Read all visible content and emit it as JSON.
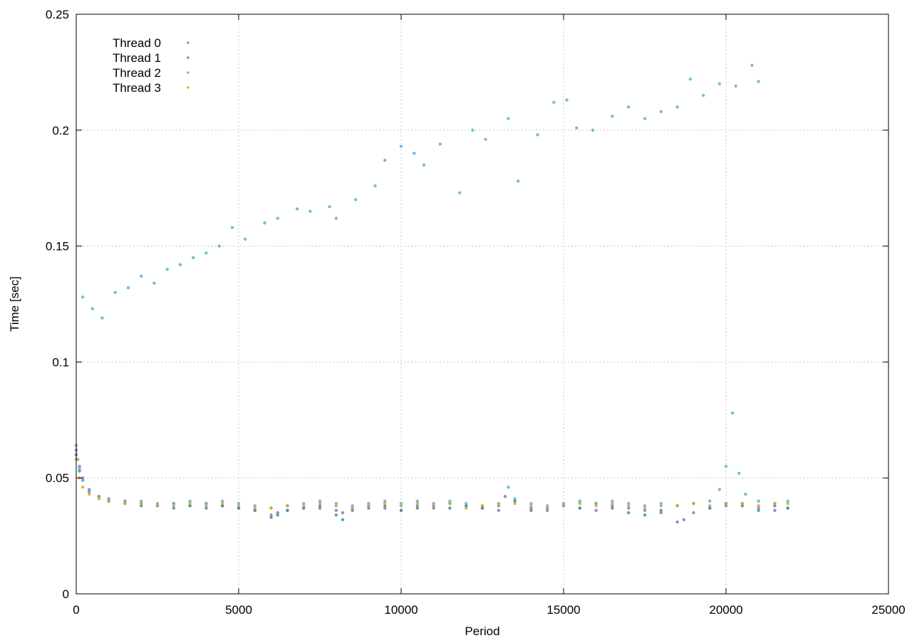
{
  "chart_data": {
    "type": "scatter",
    "title": "",
    "xlabel": "Period",
    "ylabel": "Time [sec]",
    "xlim": [
      0,
      25000
    ],
    "ylim": [
      0,
      0.25
    ],
    "x_ticks": [
      0,
      5000,
      10000,
      15000,
      20000,
      25000
    ],
    "x_tick_labels": [
      "0",
      "5000",
      "10000",
      "15000",
      "20000",
      "25000"
    ],
    "y_ticks": [
      0,
      0.05,
      0.1,
      0.15,
      0.2,
      0.25
    ],
    "y_tick_labels": [
      "0",
      "0.05",
      "0.1",
      "0.15",
      "0.2",
      "0.25"
    ],
    "grid": true,
    "legend_position": "top-left",
    "series": [
      {
        "name": "Thread 0",
        "color": "#9a6fc8",
        "x": [
          0,
          100,
          200,
          400,
          700,
          1000,
          1500,
          2000,
          2500,
          3000,
          3500,
          4000,
          4500,
          5000,
          5500,
          6000,
          6200,
          6500,
          7000,
          7500,
          8000,
          8200,
          8500,
          9000,
          9500,
          10000,
          10500,
          11000,
          11500,
          12000,
          12500,
          13000,
          13200,
          13500,
          14000,
          14500,
          15000,
          15500,
          16000,
          16500,
          17000,
          17500,
          18000,
          18500,
          18700,
          19000,
          19500,
          20000,
          20500,
          21000,
          21500,
          21900
        ],
        "y": [
          0.062,
          0.055,
          0.05,
          0.045,
          0.042,
          0.041,
          0.04,
          0.039,
          0.038,
          0.039,
          0.038,
          0.039,
          0.038,
          0.037,
          0.036,
          0.034,
          0.035,
          0.036,
          0.037,
          0.038,
          0.036,
          0.035,
          0.037,
          0.038,
          0.037,
          0.036,
          0.038,
          0.037,
          0.039,
          0.038,
          0.037,
          0.036,
          0.042,
          0.04,
          0.037,
          0.036,
          0.038,
          0.037,
          0.036,
          0.038,
          0.037,
          0.036,
          0.035,
          0.031,
          0.032,
          0.035,
          0.037,
          0.038,
          0.039,
          0.037,
          0.036,
          0.037
        ]
      },
      {
        "name": "Thread 1",
        "color": "#2a9d8f",
        "x": [
          0,
          100,
          200,
          400,
          700,
          1000,
          1500,
          2000,
          2500,
          3000,
          3500,
          4000,
          4500,
          5000,
          5500,
          6000,
          6200,
          6500,
          7000,
          7500,
          8000,
          8200,
          8500,
          9000,
          9500,
          10000,
          10500,
          11000,
          11500,
          12000,
          12500,
          13000,
          13500,
          14000,
          14500,
          15000,
          15500,
          16000,
          16500,
          17000,
          17500,
          18000,
          18500,
          19000,
          19500,
          20000,
          20500,
          21000,
          21500,
          21900
        ],
        "y": [
          0.06,
          0.053,
          0.049,
          0.044,
          0.042,
          0.04,
          0.039,
          0.038,
          0.038,
          0.037,
          0.038,
          0.037,
          0.038,
          0.037,
          0.036,
          0.033,
          0.034,
          0.036,
          0.037,
          0.037,
          0.034,
          0.032,
          0.036,
          0.037,
          0.038,
          0.036,
          0.037,
          0.038,
          0.037,
          0.038,
          0.037,
          0.038,
          0.04,
          0.036,
          0.037,
          0.038,
          0.037,
          0.039,
          0.037,
          0.035,
          0.034,
          0.036,
          0.038,
          0.039,
          0.037,
          0.039,
          0.038,
          0.036,
          0.038,
          0.037
        ]
      },
      {
        "name": "Thread 2",
        "color": "#5bb0d8",
        "x": [
          0,
          50,
          100,
          200,
          400,
          700,
          1000,
          1500,
          2000,
          2500,
          3000,
          3500,
          4000,
          4500,
          5000,
          5500,
          6000,
          6500,
          7000,
          7500,
          8000,
          8500,
          9000,
          9500,
          10000,
          10500,
          11000,
          11500,
          12000,
          12500,
          13000,
          13300,
          13500,
          14000,
          14500,
          15000,
          15500,
          16000,
          16500,
          17000,
          17500,
          18000,
          18500,
          19000,
          19500,
          19800,
          20000,
          20200,
          20400,
          20600,
          21000,
          21500,
          21900
        ],
        "y": [
          0.064,
          0.058,
          0.054,
          0.049,
          0.044,
          0.042,
          0.041,
          0.04,
          0.04,
          0.039,
          0.039,
          0.04,
          0.039,
          0.04,
          0.039,
          0.038,
          0.037,
          0.038,
          0.039,
          0.04,
          0.039,
          0.038,
          0.039,
          0.04,
          0.039,
          0.04,
          0.039,
          0.04,
          0.039,
          0.038,
          0.039,
          0.046,
          0.041,
          0.039,
          0.038,
          0.039,
          0.04,
          0.039,
          0.04,
          0.039,
          0.038,
          0.039,
          0.038,
          0.039,
          0.04,
          0.045,
          0.055,
          0.078,
          0.052,
          0.043,
          0.04,
          0.039,
          0.04
        ]
      },
      {
        "name": "Thread 3",
        "color": "#e0a11b",
        "x": [
          0,
          100,
          200,
          400,
          700,
          1000,
          1500,
          2000,
          2500,
          3000,
          3500,
          4000,
          4500,
          5000,
          5500,
          6000,
          6500,
          7000,
          7500,
          8000,
          8500,
          9000,
          9500,
          10000,
          10500,
          11000,
          11500,
          12000,
          12500,
          13000,
          13500,
          14000,
          14500,
          15000,
          15500,
          16000,
          16500,
          17000,
          17500,
          18000,
          18500,
          19000,
          19500,
          20000,
          20500,
          21000,
          21500,
          21900
        ],
        "y": [
          0.058,
          0.05,
          0.046,
          0.043,
          0.041,
          0.04,
          0.039,
          0.039,
          0.038,
          0.038,
          0.039,
          0.038,
          0.039,
          0.038,
          0.037,
          0.037,
          0.038,
          0.038,
          0.039,
          0.038,
          0.037,
          0.038,
          0.039,
          0.038,
          0.039,
          0.038,
          0.039,
          0.037,
          0.038,
          0.038,
          0.039,
          0.038,
          0.037,
          0.038,
          0.039,
          0.038,
          0.039,
          0.038,
          0.037,
          0.038,
          0.038,
          0.039,
          0.038,
          0.039,
          0.039,
          0.038,
          0.039,
          0.039
        ]
      },
      {
        "name": "",
        "color": "#5bb0d8",
        "x": [
          200,
          500,
          800,
          1200,
          1600,
          2000,
          2400,
          2800,
          3200,
          3600,
          4000,
          4400,
          4800,
          5200,
          5800,
          6200,
          6800,
          7200,
          7800,
          8000,
          8600,
          9200,
          9500,
          10000,
          10400,
          10700,
          11200,
          11800,
          12200,
          12600,
          13300,
          13600,
          14200,
          14700,
          15100,
          15400,
          15900,
          16500,
          17000,
          17500,
          18000,
          18500,
          18900,
          19300,
          19800,
          20300,
          20800,
          21000
        ],
        "y": [
          0.128,
          0.123,
          0.119,
          0.13,
          0.132,
          0.137,
          0.134,
          0.14,
          0.142,
          0.145,
          0.147,
          0.15,
          0.158,
          0.153,
          0.16,
          0.162,
          0.166,
          0.165,
          0.167,
          0.162,
          0.17,
          0.176,
          0.187,
          0.193,
          0.19,
          0.185,
          0.194,
          0.173,
          0.2,
          0.196,
          0.205,
          0.178,
          0.198,
          0.212,
          0.213,
          0.201,
          0.2,
          0.206,
          0.21,
          0.205,
          0.208,
          0.21,
          0.222,
          0.215,
          0.22,
          0.219,
          0.228,
          0.221
        ]
      }
    ]
  }
}
